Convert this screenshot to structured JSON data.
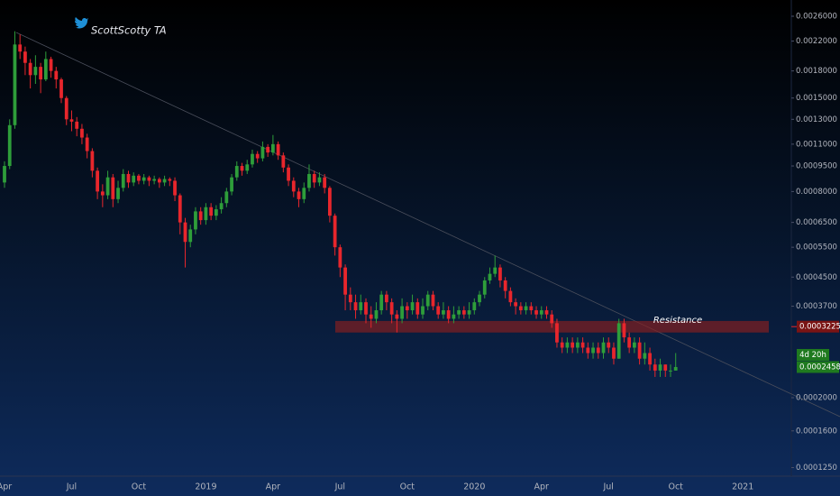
{
  "chart_data": {
    "type": "candlestick",
    "watermark": "ScottScotty TA",
    "log_scale": true,
    "up_color": "#2e9e3a",
    "down_color": "#e8262c",
    "ylim": [
      0.000118,
      0.0029
    ],
    "yticks": [
      {
        "value": 0.0026,
        "label": "0.0026000"
      },
      {
        "value": 0.0022,
        "label": "0.0022000"
      },
      {
        "value": 0.0018,
        "label": "0.0018000"
      },
      {
        "value": 0.0015,
        "label": "0.0015000"
      },
      {
        "value": 0.0013,
        "label": "0.0013000"
      },
      {
        "value": 0.0011,
        "label": "0.0011000"
      },
      {
        "value": 0.00095,
        "label": "0.0009500"
      },
      {
        "value": 0.0008,
        "label": "0.0008000"
      },
      {
        "value": 0.00065,
        "label": "0.0006500"
      },
      {
        "value": 0.00055,
        "label": "0.0005500"
      },
      {
        "value": 0.00045,
        "label": "0.0004500"
      },
      {
        "value": 0.00037,
        "label": "0.0003700"
      },
      {
        "value": 0.0002,
        "label": "0.0002000"
      },
      {
        "value": 0.00016,
        "label": "0.0001600"
      },
      {
        "value": 0.000125,
        "label": "0.0001250"
      }
    ],
    "categories": [
      "Apr",
      null,
      null,
      null,
      null,
      null,
      null,
      null,
      null,
      null,
      null,
      null,
      null,
      "Jul",
      null,
      null,
      null,
      null,
      null,
      null,
      null,
      null,
      null,
      null,
      null,
      null,
      "Oct",
      null,
      null,
      null,
      null,
      null,
      null,
      null,
      null,
      null,
      null,
      null,
      null,
      "2019",
      null,
      null,
      null,
      null,
      null,
      null,
      null,
      null,
      null,
      null,
      null,
      null,
      "Apr",
      null,
      null,
      null,
      null,
      null,
      null,
      null,
      null,
      null,
      null,
      null,
      null,
      "Jul",
      null,
      null,
      null,
      null,
      null,
      null,
      null,
      null,
      null,
      null,
      null,
      null,
      "Oct",
      null,
      null,
      null,
      null,
      null,
      null,
      null,
      null,
      null,
      null,
      null,
      null,
      "2020",
      null,
      null,
      null,
      null,
      null,
      null,
      null,
      null,
      null,
      null,
      null,
      null,
      "Apr",
      null,
      null,
      null,
      null,
      null,
      null,
      null,
      null,
      null,
      null,
      null,
      null,
      "Jul",
      null,
      null,
      null,
      null,
      null,
      null,
      null,
      null,
      null,
      null,
      null,
      null,
      "Oct",
      null,
      null,
      null,
      null,
      null,
      null,
      null,
      null,
      null,
      null,
      null,
      null,
      "2021"
    ],
    "open": [
      0.00085,
      0.00095,
      0.00125,
      0.00215,
      0.00205,
      0.0019,
      0.00175,
      0.00185,
      0.0017,
      0.00195,
      0.0018,
      0.0017,
      0.0015,
      0.0013,
      0.00128,
      0.00122,
      0.00115,
      0.00105,
      0.00092,
      0.0008,
      0.00078,
      0.00088,
      0.00076,
      0.00082,
      0.0009,
      0.00085,
      0.00089,
      0.00086,
      0.00088,
      0.00086,
      0.00087,
      0.00085,
      0.00087,
      0.00086,
      0.00078,
      0.00065,
      0.00057,
      0.00062,
      0.0007,
      0.00066,
      0.00072,
      0.00068,
      0.00071,
      0.00074,
      0.0008,
      0.00088,
      0.00095,
      0.00092,
      0.00096,
      0.00103,
      0.001,
      0.00108,
      0.00104,
      0.0011,
      0.00102,
      0.00094,
      0.00086,
      0.0008,
      0.00076,
      0.00082,
      0.0009,
      0.00085,
      0.00088,
      0.00082,
      0.00068,
      0.00055,
      0.00048,
      0.0004,
      0.00038,
      0.00036,
      0.00038,
      0.00035,
      0.00034,
      0.00036,
      0.0004,
      0.00038,
      0.00035,
      0.00034,
      0.00037,
      0.00036,
      0.00038,
      0.00035,
      0.00037,
      0.0004,
      0.00037,
      0.00035,
      0.00036,
      0.00034,
      0.00035,
      0.00036,
      0.00035,
      0.00036,
      0.00038,
      0.0004,
      0.00044,
      0.00046,
      0.00048,
      0.00044,
      0.00041,
      0.00038,
      0.00037,
      0.00036,
      0.00037,
      0.00036,
      0.00035,
      0.00036,
      0.00035,
      0.00033,
      0.00029,
      0.00028,
      0.00029,
      0.00028,
      0.00029,
      0.00028,
      0.00027,
      0.00028,
      0.00027,
      0.00029,
      0.00028,
      0.00026,
      0.00033,
      0.0003,
      0.00028,
      0.00029,
      0.00026,
      0.00027,
      0.00025,
      0.00024,
      0.00025,
      0.00024,
      0.00024,
      null,
      null,
      null,
      null,
      null,
      null,
      null,
      null,
      null,
      null,
      null,
      null,
      null
    ],
    "high": [
      0.00098,
      0.0013,
      0.00235,
      0.0023,
      0.00212,
      0.00195,
      0.002,
      0.0019,
      0.00205,
      0.00198,
      0.00185,
      0.00172,
      0.00152,
      0.00138,
      0.00132,
      0.00126,
      0.00118,
      0.00107,
      0.00094,
      0.00084,
      0.00092,
      0.0009,
      0.00086,
      0.00093,
      0.00092,
      0.00091,
      0.0009,
      0.0009,
      0.00089,
      0.00089,
      0.00088,
      0.00089,
      0.00088,
      0.00088,
      0.00079,
      0.00067,
      0.00064,
      0.00072,
      0.00072,
      0.00074,
      0.00074,
      0.00073,
      0.00077,
      0.00082,
      0.0009,
      0.00098,
      0.00097,
      0.00099,
      0.00106,
      0.00105,
      0.00112,
      0.0011,
      0.00117,
      0.00112,
      0.00104,
      0.00096,
      0.00088,
      0.00082,
      0.00085,
      0.00096,
      0.00092,
      0.00091,
      0.0009,
      0.00083,
      0.00069,
      0.00056,
      0.00049,
      0.00042,
      0.0004,
      0.0004,
      0.00039,
      0.00037,
      0.00038,
      0.00041,
      0.00041,
      0.00039,
      0.00036,
      0.00039,
      0.00038,
      0.0004,
      0.00039,
      0.00039,
      0.00041,
      0.00041,
      0.00038,
      0.00038,
      0.00037,
      0.00037,
      0.00037,
      0.00037,
      0.00038,
      0.00039,
      0.00041,
      0.00045,
      0.00048,
      0.00052,
      0.00049,
      0.00045,
      0.00042,
      0.00039,
      0.00038,
      0.00038,
      0.00038,
      0.00037,
      0.00037,
      0.00037,
      0.00036,
      0.00034,
      0.0003,
      0.0003,
      0.0003,
      0.0003,
      0.0003,
      0.00029,
      0.00029,
      0.00029,
      0.0003,
      0.0003,
      0.00029,
      0.00034,
      0.00034,
      0.00031,
      0.0003,
      0.0003,
      0.00029,
      0.00028,
      0.00026,
      0.00026,
      0.00025,
      0.00025,
      0.00027,
      null,
      null,
      null,
      null,
      null,
      null,
      null,
      null,
      null,
      null,
      null,
      null,
      null
    ],
    "low": [
      0.00082,
      0.00093,
      0.00122,
      0.00195,
      0.00175,
      0.0016,
      0.00165,
      0.00155,
      0.00168,
      0.00172,
      0.0016,
      0.00145,
      0.00125,
      0.0012,
      0.00116,
      0.0011,
      0.001,
      0.00088,
      0.00076,
      0.00072,
      0.00076,
      0.00072,
      0.00074,
      0.0008,
      0.00082,
      0.00083,
      0.00084,
      0.00084,
      0.00083,
      0.00084,
      0.00082,
      0.00083,
      0.00083,
      0.00075,
      0.0006,
      0.00048,
      0.00055,
      0.0006,
      0.00064,
      0.00064,
      0.00066,
      0.00066,
      0.00069,
      0.00072,
      0.00078,
      0.00086,
      0.00089,
      0.0009,
      0.00094,
      0.00097,
      0.00098,
      0.00101,
      0.00102,
      0.00099,
      0.00091,
      0.00083,
      0.00077,
      0.00072,
      0.00074,
      0.0008,
      0.00082,
      0.00083,
      0.00079,
      0.00065,
      0.00052,
      0.00045,
      0.00036,
      0.00036,
      0.00034,
      0.00035,
      0.00033,
      0.00032,
      0.00033,
      0.00035,
      0.00036,
      0.00033,
      0.00031,
      0.00033,
      0.00034,
      0.00035,
      0.00034,
      0.00034,
      0.00036,
      0.00036,
      0.00034,
      0.00034,
      0.00033,
      0.00033,
      0.00034,
      0.00034,
      0.00034,
      0.00035,
      0.00037,
      0.00039,
      0.00043,
      0.00045,
      0.00042,
      0.00039,
      0.00037,
      0.00035,
      0.00035,
      0.00035,
      0.00035,
      0.00034,
      0.00034,
      0.00034,
      0.00032,
      0.00028,
      0.00027,
      0.00027,
      0.00027,
      0.00027,
      0.00027,
      0.00026,
      0.00026,
      0.00026,
      0.00026,
      0.00027,
      0.00025,
      0.00026,
      0.00029,
      0.00027,
      0.00027,
      0.00025,
      0.00025,
      0.00024,
      0.00023,
      0.00023,
      0.00023,
      0.00023,
      0.00024,
      null,
      null,
      null,
      null,
      null,
      null,
      null,
      null,
      null,
      null,
      null,
      null,
      null
    ],
    "close": [
      0.00095,
      0.00125,
      0.00215,
      0.00205,
      0.0019,
      0.00175,
      0.00185,
      0.0017,
      0.00195,
      0.0018,
      0.0017,
      0.0015,
      0.0013,
      0.00128,
      0.00122,
      0.00115,
      0.00105,
      0.00092,
      0.0008,
      0.00078,
      0.00088,
      0.00076,
      0.00082,
      0.0009,
      0.00085,
      0.00089,
      0.00086,
      0.00088,
      0.00086,
      0.00087,
      0.00085,
      0.00087,
      0.00086,
      0.00078,
      0.00065,
      0.00057,
      0.00062,
      0.0007,
      0.00066,
      0.00072,
      0.00068,
      0.00071,
      0.00074,
      0.0008,
      0.00088,
      0.00095,
      0.00092,
      0.00096,
      0.00103,
      0.001,
      0.00108,
      0.00104,
      0.0011,
      0.00102,
      0.00094,
      0.00086,
      0.0008,
      0.00076,
      0.00082,
      0.0009,
      0.00085,
      0.00088,
      0.00082,
      0.00068,
      0.00055,
      0.00048,
      0.0004,
      0.00038,
      0.00036,
      0.00038,
      0.00035,
      0.00034,
      0.00036,
      0.0004,
      0.00038,
      0.00035,
      0.00034,
      0.00037,
      0.00036,
      0.00038,
      0.00035,
      0.00037,
      0.0004,
      0.00037,
      0.00035,
      0.00036,
      0.00034,
      0.00035,
      0.00036,
      0.00035,
      0.00036,
      0.00038,
      0.0004,
      0.00044,
      0.00046,
      0.00048,
      0.00044,
      0.00041,
      0.00038,
      0.00037,
      0.00036,
      0.00037,
      0.00036,
      0.00035,
      0.00036,
      0.00035,
      0.00033,
      0.00029,
      0.00028,
      0.00029,
      0.00028,
      0.00029,
      0.00028,
      0.00027,
      0.00028,
      0.00027,
      0.00029,
      0.00028,
      0.00026,
      0.00033,
      0.0003,
      0.00028,
      0.00029,
      0.00026,
      0.00027,
      0.00025,
      0.00024,
      0.00025,
      0.00024,
      0.00024,
      0.0002458,
      null,
      null,
      null,
      null,
      null,
      null,
      null,
      null,
      null,
      null,
      null,
      null,
      null
    ],
    "resistance": {
      "label": "Resistance",
      "value": 0.0003225,
      "zone": [
        0.00031,
        0.000335
      ]
    },
    "last_price": 0.0002458,
    "countdown": "4d 20h"
  }
}
